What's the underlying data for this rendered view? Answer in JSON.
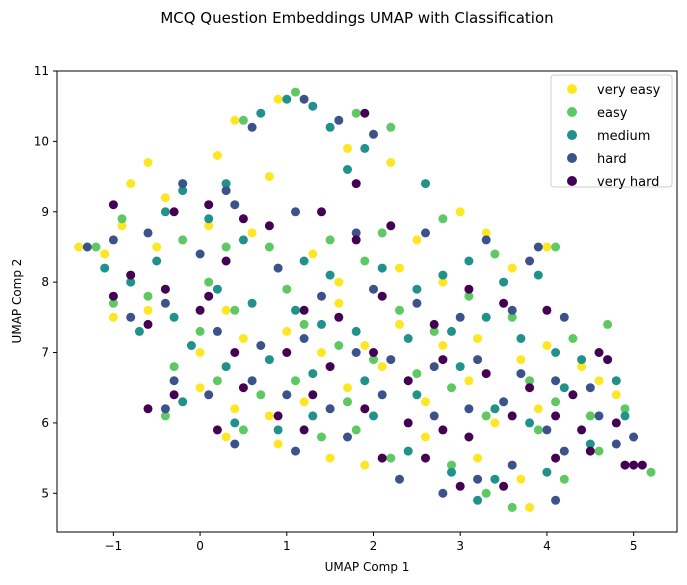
{
  "chart_data": {
    "type": "scatter",
    "title": "MCQ Question Embeddings UMAP with Classification",
    "xlabel": "UMAP Comp 1",
    "ylabel": "UMAP Comp 2",
    "xlim": [
      -1.65,
      5.5
    ],
    "ylim": [
      4.45,
      11.0
    ],
    "xticks": [
      -1,
      0,
      1,
      2,
      3,
      4,
      5
    ],
    "yticks": [
      5,
      6,
      7,
      8,
      9,
      10,
      11
    ],
    "grid": false,
    "legend_position": "top-right",
    "series": [
      {
        "name": "very easy",
        "color": "#fde725",
        "points": [
          [
            0.9,
            10.6
          ],
          [
            0.4,
            10.3
          ],
          [
            -0.6,
            9.7
          ],
          [
            -0.8,
            9.4
          ],
          [
            -0.4,
            9.2
          ],
          [
            0.2,
            9.8
          ],
          [
            0.8,
            9.5
          ],
          [
            1.7,
            9.9
          ],
          [
            2.2,
            9.7
          ],
          [
            -0.9,
            8.8
          ],
          [
            -1.1,
            8.4
          ],
          [
            -0.5,
            8.5
          ],
          [
            0.1,
            8.8
          ],
          [
            0.6,
            8.7
          ],
          [
            1.3,
            8.4
          ],
          [
            1.6,
            8.0
          ],
          [
            2.3,
            8.2
          ],
          [
            2.8,
            8.0
          ],
          [
            3.3,
            8.7
          ],
          [
            3.6,
            8.2
          ],
          [
            4.0,
            8.5
          ],
          [
            -1.0,
            7.5
          ],
          [
            -0.6,
            7.6
          ],
          [
            0.3,
            7.6
          ],
          [
            0.5,
            7.2
          ],
          [
            1.0,
            7.3
          ],
          [
            1.4,
            7.0
          ],
          [
            1.9,
            7.1
          ],
          [
            2.3,
            7.4
          ],
          [
            2.8,
            7.1
          ],
          [
            3.2,
            7.2
          ],
          [
            3.7,
            6.9
          ],
          [
            4.0,
            7.1
          ],
          [
            4.4,
            6.8
          ],
          [
            0.0,
            6.5
          ],
          [
            0.4,
            6.2
          ],
          [
            0.8,
            6.1
          ],
          [
            1.2,
            6.3
          ],
          [
            1.7,
            6.5
          ],
          [
            2.1,
            6.8
          ],
          [
            2.6,
            6.3
          ],
          [
            3.1,
            6.6
          ],
          [
            3.4,
            6.0
          ],
          [
            3.9,
            6.2
          ],
          [
            4.6,
            6.6
          ],
          [
            0.3,
            5.8
          ],
          [
            0.9,
            5.7
          ],
          [
            1.5,
            5.5
          ],
          [
            1.9,
            5.4
          ],
          [
            2.6,
            5.8
          ],
          [
            3.2,
            5.5
          ],
          [
            3.7,
            5.2
          ],
          [
            3.8,
            4.8
          ],
          [
            4.8,
            6.4
          ],
          [
            -1.4,
            8.5
          ],
          [
            2.5,
            8.6
          ],
          [
            0.0,
            7.0
          ],
          [
            1.6,
            7.7
          ],
          [
            3.0,
            9.0
          ]
        ]
      },
      {
        "name": "easy",
        "color": "#5ec962",
        "points": [
          [
            1.1,
            10.7
          ],
          [
            0.5,
            10.3
          ],
          [
            1.8,
            10.4
          ],
          [
            2.2,
            10.2
          ],
          [
            -1.2,
            8.5
          ],
          [
            -0.9,
            8.9
          ],
          [
            -0.2,
            8.6
          ],
          [
            0.3,
            8.5
          ],
          [
            0.8,
            8.5
          ],
          [
            1.5,
            8.6
          ],
          [
            1.9,
            8.3
          ],
          [
            2.8,
            8.9
          ],
          [
            3.4,
            8.4
          ],
          [
            4.1,
            8.5
          ],
          [
            -1.0,
            7.7
          ],
          [
            -0.6,
            7.8
          ],
          [
            0.0,
            7.3
          ],
          [
            0.4,
            7.6
          ],
          [
            1.2,
            7.4
          ],
          [
            1.6,
            7.1
          ],
          [
            2.3,
            7.6
          ],
          [
            2.7,
            7.3
          ],
          [
            3.1,
            7.8
          ],
          [
            3.6,
            7.5
          ],
          [
            4.3,
            7.2
          ],
          [
            4.7,
            7.4
          ],
          [
            -0.3,
            6.8
          ],
          [
            0.2,
            6.6
          ],
          [
            0.7,
            6.4
          ],
          [
            1.1,
            6.6
          ],
          [
            1.7,
            6.3
          ],
          [
            2.0,
            6.9
          ],
          [
            2.5,
            6.7
          ],
          [
            2.9,
            6.5
          ],
          [
            3.3,
            6.1
          ],
          [
            3.8,
            6.6
          ],
          [
            4.1,
            6.3
          ],
          [
            4.5,
            6.1
          ],
          [
            4.9,
            6.2
          ],
          [
            -0.4,
            6.1
          ],
          [
            0.5,
            5.9
          ],
          [
            1.4,
            5.8
          ],
          [
            1.8,
            5.9
          ],
          [
            2.2,
            5.5
          ],
          [
            2.9,
            5.4
          ],
          [
            3.3,
            5.0
          ],
          [
            3.6,
            4.8
          ],
          [
            4.2,
            5.2
          ],
          [
            4.6,
            5.6
          ],
          [
            5.2,
            5.3
          ],
          [
            0.1,
            8.0
          ],
          [
            2.1,
            8.7
          ],
          [
            1.0,
            7.9
          ],
          [
            3.9,
            5.9
          ]
        ]
      },
      {
        "name": "medium",
        "color": "#21918c",
        "points": [
          [
            1.0,
            10.6
          ],
          [
            1.3,
            10.5
          ],
          [
            0.7,
            10.4
          ],
          [
            1.5,
            10.2
          ],
          [
            1.9,
            9.9
          ],
          [
            1.7,
            9.6
          ],
          [
            0.3,
            9.4
          ],
          [
            -0.2,
            9.3
          ],
          [
            2.6,
            9.4
          ],
          [
            -0.4,
            9.0
          ],
          [
            0.1,
            8.9
          ],
          [
            0.5,
            8.6
          ],
          [
            1.2,
            8.3
          ],
          [
            1.5,
            8.1
          ],
          [
            2.1,
            8.2
          ],
          [
            2.8,
            8.1
          ],
          [
            3.1,
            8.3
          ],
          [
            3.5,
            8.0
          ],
          [
            3.9,
            8.1
          ],
          [
            -0.8,
            8.0
          ],
          [
            -0.5,
            8.3
          ],
          [
            0.2,
            7.9
          ],
          [
            0.6,
            7.7
          ],
          [
            1.1,
            7.6
          ],
          [
            1.4,
            7.4
          ],
          [
            1.8,
            7.3
          ],
          [
            2.4,
            7.2
          ],
          [
            2.9,
            7.3
          ],
          [
            3.3,
            7.5
          ],
          [
            3.7,
            7.2
          ],
          [
            4.1,
            7.0
          ],
          [
            4.4,
            6.9
          ],
          [
            -0.7,
            7.3
          ],
          [
            -0.3,
            7.5
          ],
          [
            -0.1,
            7.1
          ],
          [
            0.3,
            6.8
          ],
          [
            0.8,
            6.9
          ],
          [
            1.3,
            6.7
          ],
          [
            1.9,
            6.6
          ],
          [
            2.5,
            6.4
          ],
          [
            3.0,
            6.8
          ],
          [
            3.4,
            6.2
          ],
          [
            3.8,
            6.0
          ],
          [
            4.2,
            6.5
          ],
          [
            4.8,
            6.6
          ],
          [
            -0.2,
            6.3
          ],
          [
            0.4,
            6.0
          ],
          [
            0.9,
            5.9
          ],
          [
            1.3,
            6.1
          ],
          [
            2.0,
            6.1
          ],
          [
            2.4,
            5.6
          ],
          [
            2.9,
            5.3
          ],
          [
            3.2,
            4.9
          ],
          [
            3.4,
            5.2
          ],
          [
            4.0,
            5.3
          ],
          [
            4.5,
            5.7
          ],
          [
            4.9,
            6.1
          ],
          [
            -1.1,
            8.2
          ],
          [
            2.5,
            7.9
          ]
        ]
      },
      {
        "name": "hard",
        "color": "#3b528b",
        "points": [
          [
            1.2,
            10.6
          ],
          [
            0.6,
            10.2
          ],
          [
            1.6,
            10.3
          ],
          [
            2.0,
            10.1
          ],
          [
            -0.2,
            9.4
          ],
          [
            0.4,
            9.1
          ],
          [
            1.1,
            9.0
          ],
          [
            1.8,
            8.7
          ],
          [
            2.6,
            8.7
          ],
          [
            3.3,
            8.6
          ],
          [
            3.8,
            8.3
          ],
          [
            -1.0,
            8.6
          ],
          [
            -0.6,
            8.7
          ],
          [
            0.0,
            8.4
          ],
          [
            0.9,
            8.2
          ],
          [
            1.4,
            7.8
          ],
          [
            2.0,
            7.9
          ],
          [
            2.5,
            7.7
          ],
          [
            3.0,
            7.5
          ],
          [
            3.6,
            7.6
          ],
          [
            4.2,
            7.5
          ],
          [
            -0.8,
            7.5
          ],
          [
            -0.4,
            7.7
          ],
          [
            0.2,
            7.3
          ],
          [
            0.7,
            7.1
          ],
          [
            1.2,
            7.2
          ],
          [
            1.8,
            7.0
          ],
          [
            2.2,
            6.9
          ],
          [
            2.7,
            6.8
          ],
          [
            3.2,
            6.9
          ],
          [
            3.7,
            6.7
          ],
          [
            4.1,
            6.6
          ],
          [
            4.5,
            6.5
          ],
          [
            -0.3,
            6.6
          ],
          [
            0.1,
            6.4
          ],
          [
            0.6,
            6.6
          ],
          [
            1.0,
            6.4
          ],
          [
            1.5,
            6.2
          ],
          [
            2.1,
            6.4
          ],
          [
            2.7,
            6.1
          ],
          [
            3.1,
            6.2
          ],
          [
            3.5,
            6.3
          ],
          [
            4.0,
            5.9
          ],
          [
            4.6,
            6.1
          ],
          [
            5.0,
            5.8
          ],
          [
            -0.4,
            6.2
          ],
          [
            0.4,
            5.7
          ],
          [
            1.1,
            5.6
          ],
          [
            1.7,
            5.8
          ],
          [
            2.3,
            5.2
          ],
          [
            2.8,
            5.0
          ],
          [
            3.2,
            5.2
          ],
          [
            3.6,
            5.4
          ],
          [
            4.2,
            5.6
          ],
          [
            4.8,
            5.7
          ],
          [
            -1.3,
            8.5
          ],
          [
            0.3,
            9.3
          ],
          [
            3.9,
            8.5
          ],
          [
            4.1,
            4.9
          ]
        ]
      },
      {
        "name": "very hard",
        "color": "#440154",
        "points": [
          [
            1.9,
            10.4
          ],
          [
            1.8,
            9.4
          ],
          [
            2.2,
            8.8
          ],
          [
            -1.0,
            9.1
          ],
          [
            -0.3,
            9.0
          ],
          [
            0.5,
            8.9
          ],
          [
            0.8,
            8.8
          ],
          [
            1.4,
            9.0
          ],
          [
            1.8,
            8.6
          ],
          [
            -0.8,
            8.1
          ],
          [
            -0.4,
            7.9
          ],
          [
            0.1,
            7.8
          ],
          [
            0.3,
            8.3
          ],
          [
            1.2,
            7.6
          ],
          [
            1.6,
            7.5
          ],
          [
            2.1,
            7.8
          ],
          [
            2.7,
            7.4
          ],
          [
            3.1,
            7.9
          ],
          [
            3.5,
            7.7
          ],
          [
            4.0,
            7.6
          ],
          [
            -1.0,
            7.8
          ],
          [
            -0.6,
            7.4
          ],
          [
            0.0,
            7.6
          ],
          [
            0.4,
            7.0
          ],
          [
            1.0,
            7.0
          ],
          [
            1.5,
            6.8
          ],
          [
            2.0,
            7.0
          ],
          [
            2.4,
            6.6
          ],
          [
            2.8,
            6.9
          ],
          [
            3.3,
            6.7
          ],
          [
            3.8,
            6.5
          ],
          [
            4.3,
            6.4
          ],
          [
            4.7,
            6.9
          ],
          [
            -0.3,
            6.4
          ],
          [
            0.5,
            6.5
          ],
          [
            0.9,
            6.1
          ],
          [
            1.3,
            6.4
          ],
          [
            1.9,
            6.2
          ],
          [
            2.4,
            6.0
          ],
          [
            2.8,
            5.9
          ],
          [
            3.1,
            5.8
          ],
          [
            3.6,
            6.1
          ],
          [
            4.1,
            6.1
          ],
          [
            4.4,
            5.9
          ],
          [
            4.8,
            6.0
          ],
          [
            -0.6,
            6.2
          ],
          [
            0.2,
            5.9
          ],
          [
            1.2,
            5.9
          ],
          [
            2.1,
            5.5
          ],
          [
            2.6,
            5.5
          ],
          [
            3.0,
            5.1
          ],
          [
            3.5,
            5.1
          ],
          [
            4.1,
            5.5
          ],
          [
            4.5,
            5.6
          ],
          [
            5.0,
            5.4
          ],
          [
            5.1,
            5.4
          ],
          [
            0.1,
            9.1
          ],
          [
            4.6,
            7.0
          ],
          [
            4.9,
            5.4
          ]
        ]
      }
    ]
  }
}
